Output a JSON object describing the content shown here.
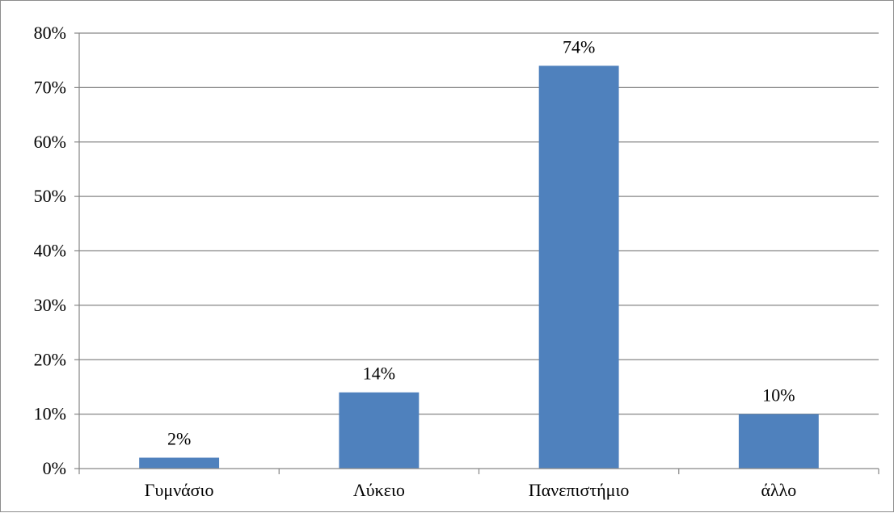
{
  "chart_data": {
    "type": "bar",
    "categories": [
      "Γυμνάσιο",
      "Λύκειο",
      "Πανεπιστήμιο",
      "άλλο"
    ],
    "values": [
      2,
      14,
      74,
      10
    ],
    "data_labels": [
      "2%",
      "14%",
      "74%",
      "10%"
    ],
    "ylim": [
      0,
      80
    ],
    "y_ticks": [
      0,
      10,
      20,
      30,
      40,
      50,
      60,
      70,
      80
    ],
    "y_tick_labels": [
      "0%",
      "10%",
      "20%",
      "30%",
      "40%",
      "50%",
      "60%",
      "70%",
      "80%"
    ],
    "grid": true,
    "legend": "none",
    "bar_color": "#4f81bd",
    "grid_color": "#868686"
  }
}
